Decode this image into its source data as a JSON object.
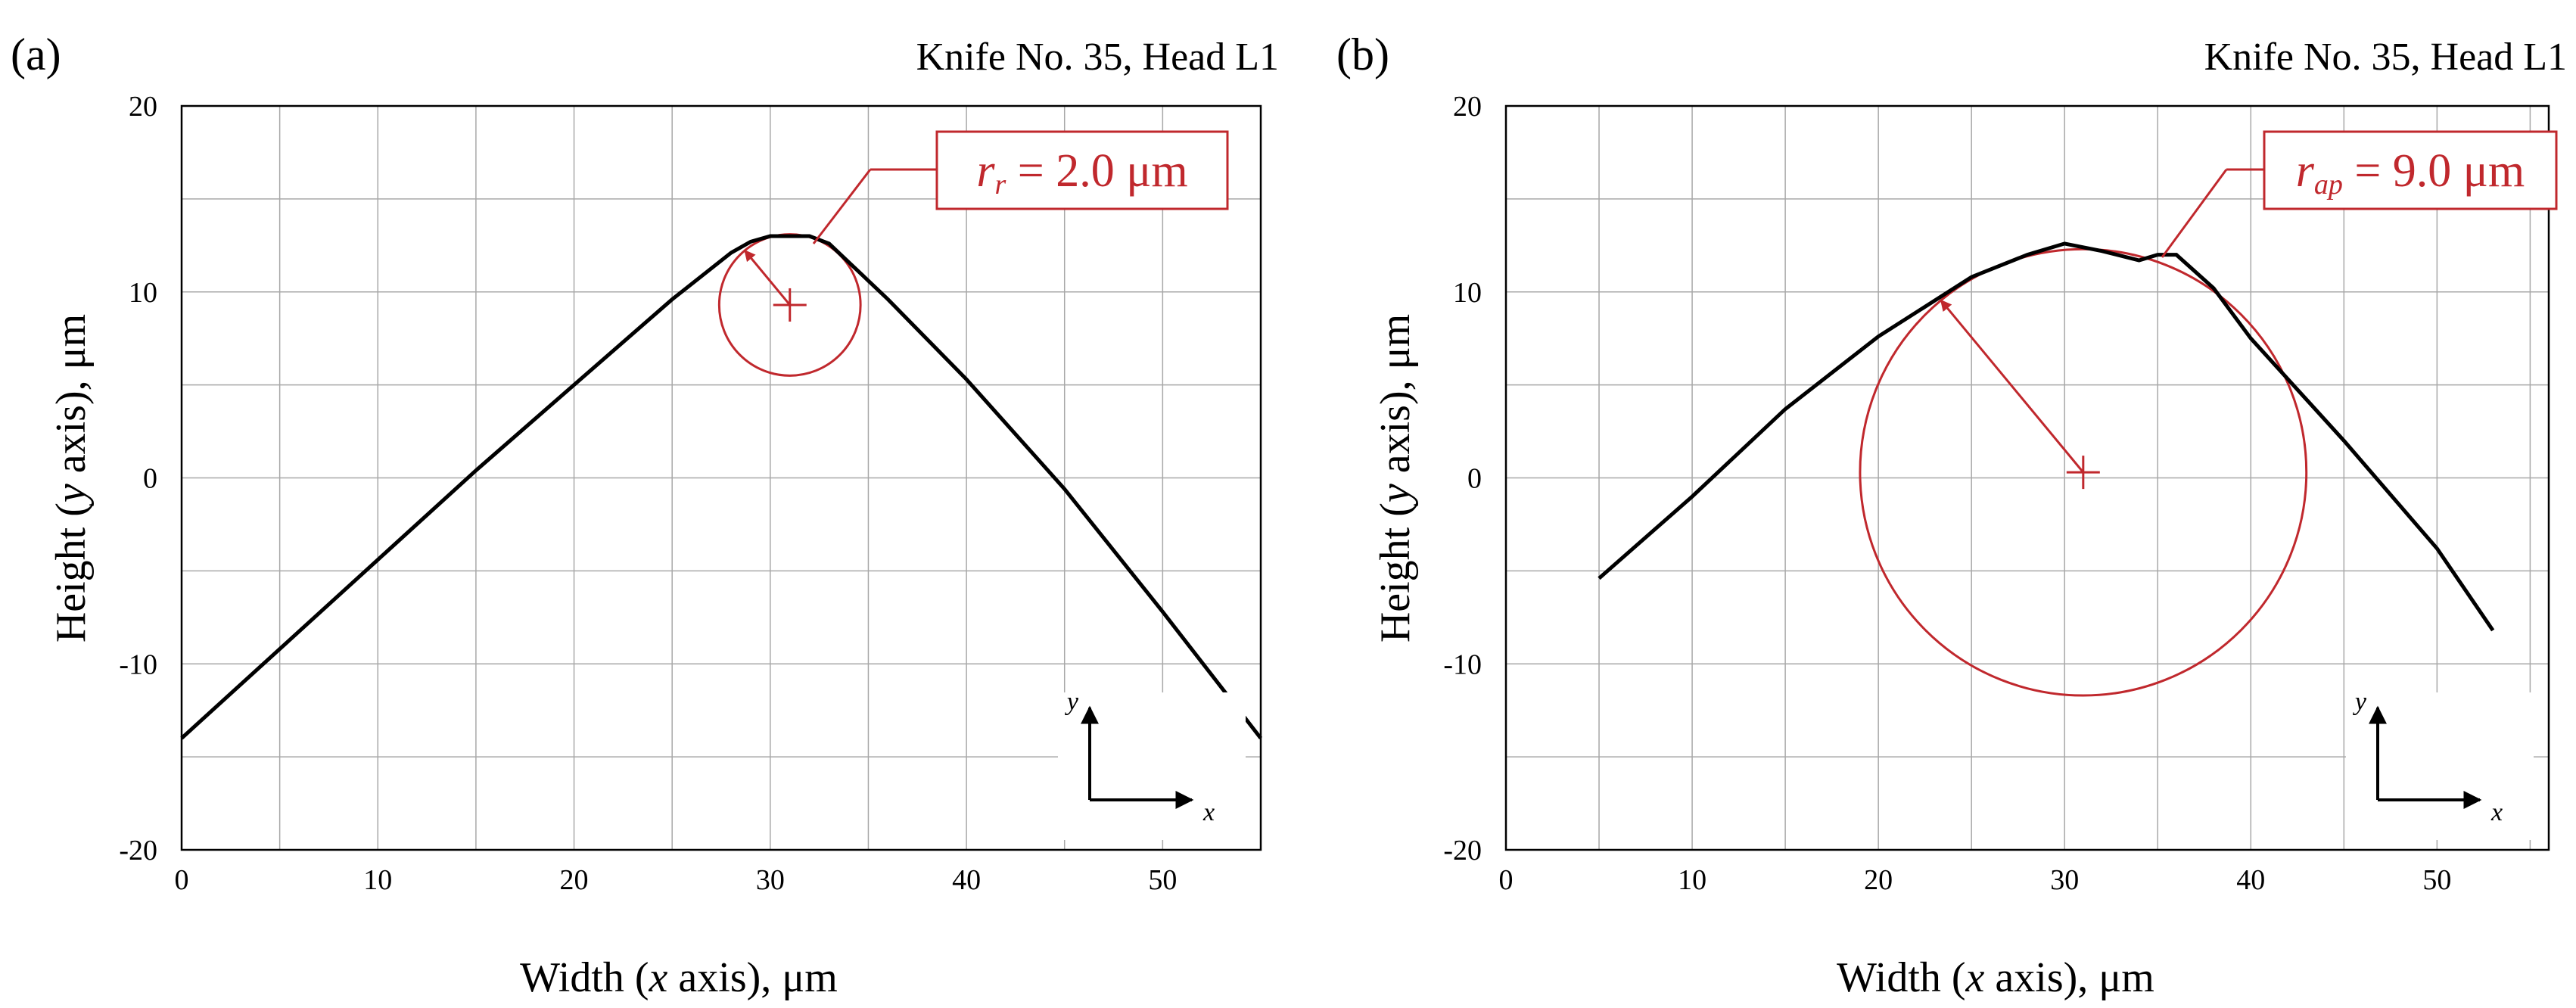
{
  "figure": {
    "panels": [
      {
        "label": "(a)",
        "title": "Knife No. 35, Head L1",
        "xlabel_pre": "Width (",
        "xlabel_var": "x",
        "xlabel_post": " axis), μm",
        "ylabel_pre": "Height (",
        "ylabel_var": "y",
        "ylabel_post": " axis), μm",
        "annotation": {
          "var": "r",
          "sub": "r",
          "text": " = 2.0 μm"
        },
        "inset": {
          "x": "x",
          "y": "y"
        }
      },
      {
        "label": "(b)",
        "title": "Knife No. 35, Head L1",
        "xlabel_pre": "Width (",
        "xlabel_var": "x",
        "xlabel_post": " axis), μm",
        "ylabel_pre": "Height (",
        "ylabel_var": "y",
        "ylabel_post": " axis), μm",
        "annotation": {
          "var": "r",
          "sub": "ap",
          "text": " = 9.0 μm"
        },
        "inset": {
          "x": "x",
          "y": "y"
        }
      }
    ]
  },
  "chart_data": [
    {
      "type": "line",
      "title": "Knife No. 35, Head L1",
      "xlabel": "Width (x axis), μm",
      "ylabel": "Height (y axis), μm",
      "xlim": [
        0,
        55
      ],
      "ylim": [
        -20,
        20
      ],
      "xticks": [
        0,
        10,
        20,
        30,
        40,
        50
      ],
      "yticks": [
        -20,
        -10,
        0,
        10,
        20
      ],
      "grid": true,
      "profile": {
        "x": [
          0,
          5,
          10,
          15,
          20,
          25,
          28,
          29,
          30,
          31,
          32,
          33,
          34,
          36,
          40,
          45,
          50,
          55
        ],
        "y": [
          -14,
          -9.2,
          -4.4,
          0.4,
          5,
          9.6,
          12.1,
          12.7,
          13,
          13,
          13,
          12.6,
          11.6,
          9.6,
          5.3,
          -0.6,
          -7.2,
          -14
        ]
      },
      "fit_circle": {
        "cx": 31,
        "cy": 9.3,
        "r_display": 3.8,
        "label": "r_r = 2.0 μm",
        "color": "#c0282d"
      }
    },
    {
      "type": "line",
      "title": "Knife No. 35, Head L1",
      "xlabel": "Width (x axis), μm",
      "ylabel": "Height (y axis), μm",
      "xlim": [
        0,
        56
      ],
      "ylim": [
        -20,
        20
      ],
      "xticks": [
        0,
        10,
        20,
        30,
        40,
        50
      ],
      "yticks": [
        -20,
        -10,
        0,
        10,
        20
      ],
      "grid": true,
      "profile": {
        "x": [
          5,
          10,
          15,
          20,
          25,
          28,
          30,
          32,
          34,
          35,
          36,
          38,
          40,
          45,
          50,
          53
        ],
        "y": [
          -5.4,
          -1,
          3.7,
          7.6,
          10.8,
          12,
          12.6,
          12.2,
          11.7,
          12,
          12,
          10.2,
          7.5,
          2,
          -3.8,
          -8.2
        ]
      },
      "fit_circle": {
        "cx": 31,
        "cy": 0.3,
        "r_display": 12,
        "label": "r_ap = 9.0 μm",
        "color": "#c0282d"
      }
    }
  ]
}
